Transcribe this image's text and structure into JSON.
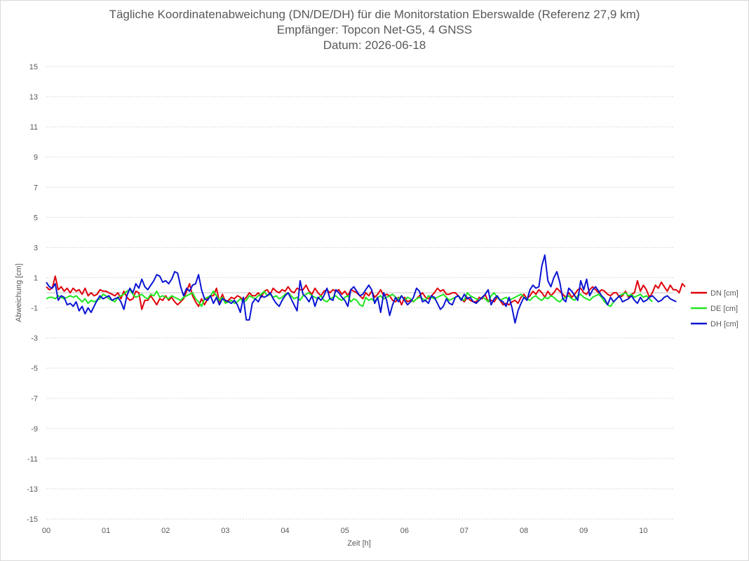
{
  "chart_data": {
    "type": "line",
    "title": "Tägliche Koordinatenabweichung (DN/DE/DH) für die Monitorstation Eberswalde (Referenz 27,9 km)",
    "subtitle": "Empfänger: Topcon Net-G5, 4 GNSS",
    "subtitle2": "Datum: 2026-06-18",
    "xlabel": "Zeit [h]",
    "ylabel": "Abweichung [cm]",
    "xlim": [
      0,
      10.5
    ],
    "ylim": [
      -15,
      15
    ],
    "x_ticks": [
      {
        "value": 0,
        "label": "00"
      },
      {
        "value": 1,
        "label": "01"
      },
      {
        "value": 2,
        "label": "02"
      },
      {
        "value": 3,
        "label": "03"
      },
      {
        "value": 4,
        "label": "04"
      },
      {
        "value": 5,
        "label": "05"
      },
      {
        "value": 6,
        "label": "06"
      },
      {
        "value": 7,
        "label": "07"
      },
      {
        "value": 8,
        "label": "08"
      },
      {
        "value": 9,
        "label": "09"
      },
      {
        "value": 10,
        "label": "10"
      }
    ],
    "y_ticks": [
      15,
      13,
      11,
      9,
      7,
      5,
      3,
      1,
      -1,
      -3,
      -5,
      -7,
      -9,
      -11,
      -13,
      -15
    ],
    "grid": "horizontal dotted",
    "legend": "right",
    "x_step_h": 0.05,
    "series": [
      {
        "name": "DN [cm]",
        "color": "#e0000a",
        "values": [
          0.4,
          0.2,
          0.3,
          1.1,
          0.2,
          0.4,
          0.1,
          0.3,
          0.0,
          0.3,
          0.1,
          0.2,
          -0.1,
          0.3,
          -0.2,
          0.0,
          -0.2,
          -0.1,
          0.2,
          0.1,
          0.1,
          0.0,
          -0.1,
          -0.2,
          0.0,
          -0.4,
          0.1,
          -0.3,
          -0.5,
          -0.4,
          0.1,
          0.0,
          -1.1,
          -0.5,
          -0.5,
          -0.2,
          -0.5,
          -0.8,
          -0.4,
          -0.5,
          -0.2,
          -0.5,
          -0.3,
          -0.6,
          -0.8,
          -0.6,
          -0.4,
          0.1,
          0.6,
          -0.2,
          -0.6,
          -0.9,
          -0.4,
          -0.8,
          -0.4,
          -0.2,
          -0.2,
          0.3,
          -0.6,
          -0.1,
          -0.6,
          -0.5,
          -0.3,
          -0.4,
          -0.2,
          -0.3,
          -0.5,
          -0.3,
          0.0,
          -0.2,
          -0.2,
          0.0,
          -0.3,
          0.1,
          0.2,
          -0.1,
          0.3,
          0.1,
          0.0,
          0.2,
          0.1,
          0.4,
          0.1,
          0.0,
          0.3,
          0.2,
          0.2,
          0.5,
          0.1,
          -0.1,
          0.3,
          0.0,
          -0.2,
          0.1,
          0.2,
          0.0,
          0.2,
          0.1,
          0.2,
          -0.1,
          0.1,
          -0.2,
          0.2,
          0.1,
          0.0,
          -0.2,
          -0.4,
          0.0,
          -0.2,
          0.1,
          -0.3,
          -0.1,
          0.2,
          -0.2,
          -0.1,
          -0.2,
          -0.5,
          -0.6,
          -0.3,
          -0.8,
          -0.3,
          -0.6,
          -0.5,
          -0.6,
          -0.4,
          -0.2,
          0.0,
          -0.3,
          -0.4,
          -0.2,
          0.0,
          0.3,
          0.1,
          0.2,
          -0.1,
          -0.1,
          0.0,
          0.0,
          -0.2,
          -0.4,
          -0.6,
          -0.3,
          -0.5,
          -0.6,
          -0.6,
          -0.3,
          -0.4,
          -0.1,
          -0.6,
          -0.5,
          -0.6,
          -0.3,
          -0.5,
          -0.8,
          -0.7,
          -0.8,
          -0.6,
          -0.5,
          -0.7,
          -0.3,
          -0.1,
          -0.4,
          -0.2,
          0.1,
          -0.1,
          0.2,
          0.0,
          -0.3,
          0.1,
          -0.2,
          0.0,
          0.3,
          0.1,
          -0.1,
          -0.3,
          0.0,
          -0.3,
          -0.1,
          0.2,
          0.3,
          0.0,
          -0.1,
          0.2,
          0.4,
          0.2,
          0.0,
          0.2,
          0.1,
          -0.1,
          -0.2,
          0.0,
          0.0,
          -0.3,
          -0.2,
          0.1,
          -0.3,
          -0.1,
          0.0,
          0.8,
          0.1,
          0.5,
          0.2,
          -0.3,
          0.0,
          0.5,
          0.3,
          0.7,
          0.4,
          0.1,
          0.5,
          0.2,
          0.2,
          0.0,
          0.6,
          0.4
        ]
      },
      {
        "name": "DE [cm]",
        "color": "#1ee61e",
        "values": [
          -0.4,
          -0.3,
          -0.3,
          -0.4,
          -0.2,
          -0.3,
          -0.4,
          -0.3,
          -0.2,
          -0.3,
          -0.2,
          -0.4,
          -0.6,
          -0.4,
          -0.7,
          -0.5,
          -0.6,
          -0.5,
          -0.4,
          -0.1,
          -0.2,
          -0.4,
          -0.5,
          -0.6,
          -0.3,
          -0.2,
          -0.1,
          0.1,
          0.2,
          -0.1,
          -0.3,
          -0.2,
          -0.1,
          -0.3,
          -0.4,
          -0.1,
          -0.2,
          0.1,
          -0.3,
          -0.2,
          -0.3,
          -0.4,
          -0.2,
          -0.3,
          -0.4,
          -0.5,
          -0.3,
          -0.2,
          -0.1,
          0.0,
          -0.4,
          -0.6,
          -0.9,
          -0.4,
          -0.3,
          -0.2,
          0.1,
          -0.2,
          -0.5,
          -0.3,
          -0.7,
          -0.6,
          -0.5,
          -0.7,
          -0.6,
          -0.4,
          -0.6,
          -0.5,
          -0.2,
          -0.3,
          -0.4,
          -0.2,
          -0.1,
          0.1,
          -0.2,
          -0.1,
          -0.3,
          -0.2,
          -0.4,
          -0.3,
          -0.1,
          0.0,
          -0.2,
          -0.4,
          -0.3,
          -0.5,
          -0.2,
          -0.1,
          0.0,
          -0.2,
          -0.3,
          -0.4,
          -0.2,
          -0.5,
          -0.6,
          -0.4,
          -0.3,
          -0.2,
          -0.4,
          -0.5,
          -0.3,
          -0.2,
          -0.6,
          -0.4,
          -0.5,
          -0.8,
          -0.9,
          -0.3,
          -0.5,
          -0.4,
          -0.6,
          -0.3,
          -0.2,
          -0.4,
          -0.3,
          -0.2,
          -0.1,
          -0.3,
          -0.4,
          -0.2,
          -0.5,
          -0.3,
          -0.4,
          -0.6,
          -0.4,
          -0.3,
          -0.4,
          -0.5,
          -0.2,
          -0.3,
          -0.4,
          -0.3,
          -0.2,
          -0.1,
          -0.3,
          -0.5,
          -0.4,
          -0.3,
          -0.2,
          -0.4,
          -0.5,
          0.0,
          -0.2,
          -0.3,
          -0.4,
          -0.5,
          -0.3,
          -0.4,
          -0.6,
          -0.2,
          0.0,
          -0.3,
          -0.5,
          -0.4,
          -0.3,
          -0.5,
          -0.4,
          -0.3,
          -0.2,
          -0.1,
          -0.3,
          -0.4,
          -0.5,
          -0.3,
          -0.2,
          -0.4,
          -0.5,
          -0.3,
          -0.4,
          -0.2,
          -0.3,
          -0.5,
          -0.6,
          -0.4,
          -0.3,
          -0.2,
          -0.4,
          -0.5,
          -0.2,
          -0.1,
          -0.3,
          -0.4,
          -0.5,
          -0.3,
          -0.2,
          -0.1,
          -0.3,
          -0.6,
          -0.8,
          -0.9,
          -0.6,
          -0.4,
          -0.2,
          -0.1,
          0.0,
          -0.2,
          -0.1,
          -0.3,
          -0.2,
          -0.1,
          -0.3,
          -0.2,
          -0.4,
          -0.6
        ]
      },
      {
        "name": "DH [cm]",
        "color": "#0a14d2",
        "values": [
          0.7,
          0.4,
          0.3,
          0.6,
          -0.5,
          -0.2,
          -0.3,
          -0.8,
          -0.7,
          -0.9,
          -0.6,
          -1.2,
          -0.9,
          -1.4,
          -1.0,
          -1.3,
          -0.9,
          -0.5,
          -0.2,
          -0.4,
          -0.3,
          -0.2,
          -0.5,
          -0.4,
          -0.3,
          -0.6,
          -1.1,
          -0.2,
          0.3,
          0.0,
          0.6,
          0.3,
          0.9,
          0.4,
          0.2,
          0.5,
          0.8,
          1.2,
          1.1,
          0.7,
          0.8,
          0.6,
          0.9,
          1.4,
          1.3,
          0.4,
          -0.2,
          0.3,
          0.1,
          0.5,
          0.6,
          1.2,
          0.2,
          -0.4,
          -0.5,
          -0.2,
          -0.7,
          -0.3,
          -0.8,
          -0.4,
          -0.5,
          -0.6,
          -0.7,
          -0.5,
          -0.8,
          -1.3,
          -0.3,
          -1.8,
          -1.8,
          -0.7,
          -0.4,
          -0.6,
          -0.2,
          -0.3,
          -0.2,
          0.0,
          -0.4,
          -0.7,
          -0.9,
          -0.5,
          -0.2,
          0.0,
          -0.4,
          -0.8,
          -1.2,
          0.8,
          -0.1,
          -0.3,
          -0.6,
          -0.2,
          -0.9,
          -0.3,
          -0.5,
          -0.2,
          0.3,
          -0.4,
          -0.5,
          0.2,
          0.0,
          -0.3,
          -0.5,
          -0.9,
          0.2,
          0.4,
          0.1,
          -0.2,
          -0.1,
          0.2,
          0.5,
          0.2,
          -0.7,
          -0.3,
          -1.3,
          0.0,
          -0.5,
          -1.5,
          -0.8,
          -0.3,
          -0.6,
          -0.2,
          -0.5,
          -0.8,
          -0.6,
          -0.3,
          0.3,
          0.1,
          -0.6,
          -0.5,
          -0.7,
          -0.2,
          -0.3,
          -0.7,
          -1.1,
          -0.9,
          -0.4,
          -0.7,
          -0.8,
          -0.3,
          -0.2,
          -0.5,
          -0.1,
          -0.4,
          -0.3,
          -0.6,
          -0.7,
          -0.5,
          -0.3,
          -0.1,
          0.2,
          -0.8,
          -0.4,
          -0.2,
          -0.5,
          -0.6,
          -0.9,
          -0.3,
          -1.0,
          -2.0,
          -1.2,
          -0.7,
          -0.3,
          -0.5,
          0.2,
          0.5,
          0.3,
          0.4,
          1.8,
          2.5,
          0.8,
          0.4,
          1.0,
          1.4,
          0.7,
          -0.4,
          -0.6,
          0.3,
          0.1,
          -0.2,
          -0.5,
          0.8,
          0.2,
          0.9,
          -0.2,
          0.2,
          0.4,
          0.1,
          -0.2,
          -0.4,
          -0.8,
          -0.3,
          -0.6,
          -0.4,
          -0.2,
          -0.6,
          -0.5,
          -0.4,
          -0.2,
          -0.5,
          -0.7,
          -0.3,
          -0.6,
          -0.5,
          -0.3,
          -0.2,
          -0.4,
          -0.6,
          -0.5,
          -0.3,
          -0.2,
          -0.4,
          -0.5,
          -0.6
        ]
      }
    ]
  }
}
